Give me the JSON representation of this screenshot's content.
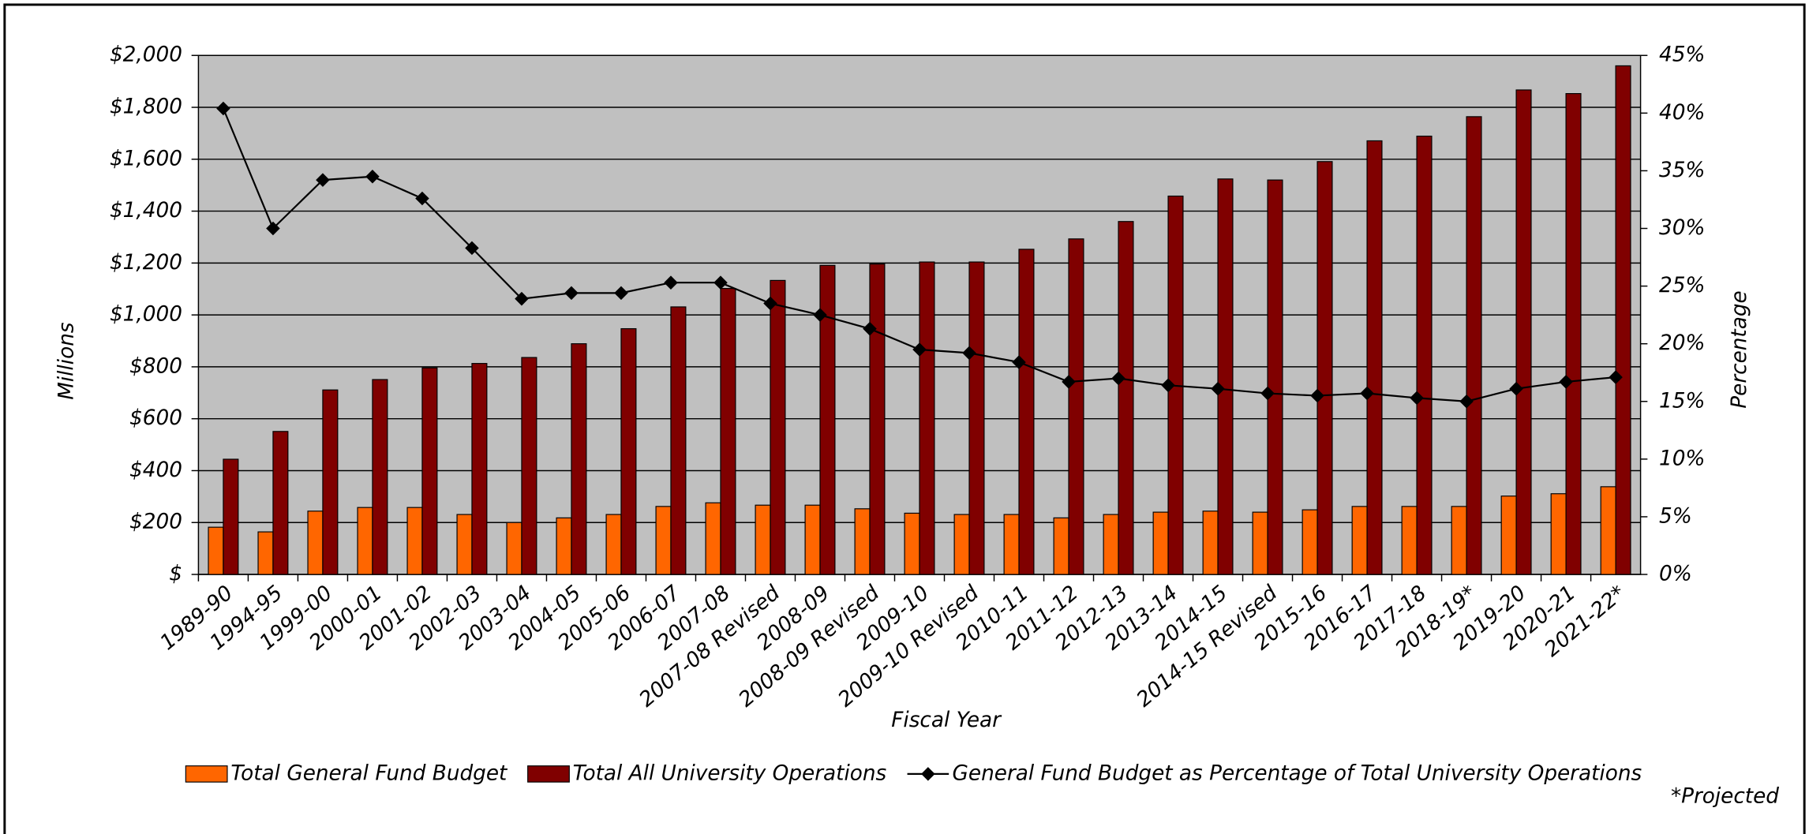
{
  "chart_data": {
    "type": "bar",
    "x_label": "Fiscal Year",
    "y_label": "Millions",
    "y2_label": "Percentage",
    "note": "*Projected",
    "categories": [
      "1989-90",
      "1994-95",
      "1999-00",
      "2000-01",
      "2001-02",
      "2002-03",
      "2003-04",
      "2004-05",
      "2005-06",
      "2006-07",
      "2007-08",
      "2007-08 Revised",
      "2008-09",
      "2008-09 Revised",
      "2009-10",
      "2009-10 Revised",
      "2010-11",
      "2011-12",
      "2012-13",
      "2013-14",
      "2014-15",
      "2014-15 Revised",
      "2015-16",
      "2016-17",
      "2017-18",
      "2018-19*",
      "2019-20",
      "2020-21",
      "2021-22*"
    ],
    "series": [
      {
        "name": "Total General Fund Budget",
        "color": "#ff6600",
        "type": "bar",
        "axis": "y",
        "values": [
          182,
          164,
          244,
          258,
          258,
          231,
          200,
          218,
          231,
          262,
          276,
          267,
          267,
          253,
          236,
          231,
          231,
          218,
          231,
          240,
          244,
          240,
          249,
          262,
          262,
          262,
          302,
          311,
          338
        ]
      },
      {
        "name": "Total All University Operations",
        "color": "#800000",
        "type": "bar",
        "axis": "y",
        "values": [
          444,
          551,
          711,
          751,
          796,
          813,
          836,
          889,
          947,
          1031,
          1102,
          1133,
          1191,
          1196,
          1204,
          1204,
          1253,
          1293,
          1360,
          1458,
          1524,
          1520,
          1591,
          1671,
          1689,
          1764,
          1867,
          1853,
          1960
        ]
      },
      {
        "name": "General Fund Budget as Percentage of Total University Operations",
        "color": "#000000",
        "type": "line",
        "axis": "y2",
        "values": [
          40.4,
          30.0,
          34.2,
          34.5,
          32.6,
          28.3,
          23.9,
          24.4,
          24.4,
          25.3,
          25.3,
          23.5,
          22.5,
          21.3,
          19.5,
          19.2,
          18.4,
          16.7,
          17.0,
          16.4,
          16.1,
          15.7,
          15.5,
          15.7,
          15.3,
          15.0,
          16.1,
          16.7,
          17.1
        ]
      }
    ],
    "ylim": [
      0,
      2000
    ],
    "yticks": [
      {
        "value": 0,
        "label": "$"
      },
      {
        "value": 200,
        "label": "$200"
      },
      {
        "value": 400,
        "label": "$400"
      },
      {
        "value": 600,
        "label": "$600"
      },
      {
        "value": 800,
        "label": "$800"
      },
      {
        "value": 1000,
        "label": "$1,000"
      },
      {
        "value": 1200,
        "label": "$1,200"
      },
      {
        "value": 1400,
        "label": "$1,400"
      },
      {
        "value": 1600,
        "label": "$1,600"
      },
      {
        "value": 1800,
        "label": "$1,800"
      },
      {
        "value": 2000,
        "label": "$2,000"
      }
    ],
    "y2lim": [
      0,
      45
    ],
    "y2ticks": [
      {
        "value": 0,
        "label": "0%"
      },
      {
        "value": 5,
        "label": "5%"
      },
      {
        "value": 10,
        "label": "10%"
      },
      {
        "value": 15,
        "label": "15%"
      },
      {
        "value": 20,
        "label": "20%"
      },
      {
        "value": 25,
        "label": "25%"
      },
      {
        "value": 30,
        "label": "30%"
      },
      {
        "value": 35,
        "label": "35%"
      },
      {
        "value": 40,
        "label": "40%"
      },
      {
        "value": 45,
        "label": "45%"
      }
    ],
    "grid": true,
    "plot_background": "#c0c0c0",
    "legend": "bottom"
  }
}
